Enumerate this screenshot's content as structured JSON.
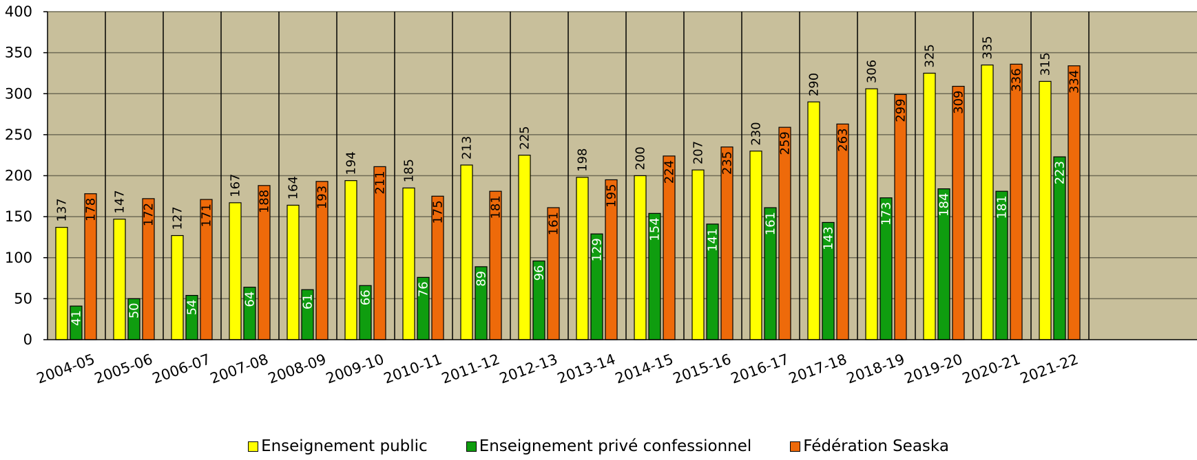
{
  "chart_data": {
    "type": "bar",
    "categories": [
      "2004-05",
      "2005-06",
      "2006-07",
      "2007-08",
      "2008-09",
      "2009-10",
      "2010-11",
      "2011-12",
      "2012-13",
      "2013-14",
      "2014-15",
      "2015-16",
      "2016-17",
      "2017-18",
      "2018-19",
      "2019-20",
      "2020-21",
      "2021-22"
    ],
    "series": [
      {
        "name": "Enseignement public",
        "color": "#ffff00",
        "label_color": "#000000",
        "values": [
          137,
          147,
          127,
          167,
          164,
          194,
          185,
          213,
          225,
          198,
          200,
          207,
          230,
          290,
          306,
          325,
          335,
          315
        ]
      },
      {
        "name": "Enseignement privé confessionnel",
        "color": "#0f9d0f",
        "label_color": "#ffffff",
        "values": [
          41,
          50,
          54,
          64,
          61,
          66,
          76,
          89,
          96,
          129,
          154,
          141,
          161,
          143,
          173,
          184,
          181,
          223
        ]
      },
      {
        "name": "Fédération Seaska",
        "color": "#ee6a0a",
        "label_color": "#000000",
        "values": [
          178,
          172,
          171,
          188,
          193,
          211,
          175,
          181,
          161,
          195,
          224,
          235,
          259,
          263,
          299,
          309,
          336,
          334
        ]
      }
    ],
    "yticks": [
      "0",
      "50",
      "100",
      "150",
      "200",
      "250",
      "300",
      "350",
      "400"
    ],
    "ylim": [
      0,
      400
    ],
    "plot_background": "#c8bf9b",
    "grid": true,
    "legend_position": "bottom"
  }
}
